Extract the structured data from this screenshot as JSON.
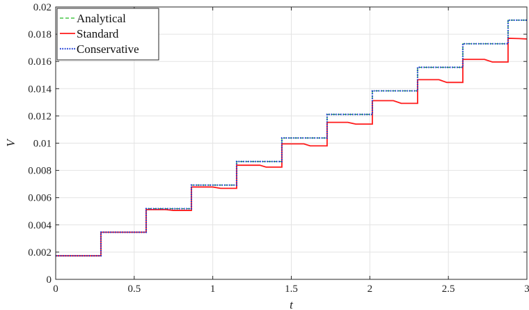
{
  "chart_data": {
    "type": "line",
    "title": "",
    "xlabel": "t",
    "ylabel": "V",
    "xlim": [
      0,
      3
    ],
    "ylim": [
      0,
      0.02
    ],
    "xticks": [
      0,
      0.5,
      1,
      1.5,
      2,
      2.5,
      3
    ],
    "xtick_labels": [
      "0",
      "0.5",
      "1",
      "1.5",
      "2",
      "2.5",
      "3"
    ],
    "yticks": [
      0,
      0.002,
      0.004,
      0.006,
      0.008,
      0.01,
      0.012,
      0.014,
      0.016,
      0.018,
      0.02
    ],
    "ytick_labels": [
      "0",
      "0.002",
      "0.004",
      "0.006",
      "0.008",
      "0.01",
      "0.012",
      "0.014",
      "0.016",
      "0.018",
      "0.02"
    ],
    "grid": true,
    "legend_position": "top-left",
    "series": [
      {
        "name": "Analytical",
        "color": "#22bb22",
        "style": "dashed",
        "x": [
          0,
          0.288,
          0.288,
          0.576,
          0.576,
          0.864,
          0.864,
          1.152,
          1.152,
          1.44,
          1.44,
          1.728,
          1.728,
          2.016,
          2.016,
          2.304,
          2.304,
          2.592,
          2.592,
          2.88,
          2.88,
          3.0
        ],
        "y": [
          0.00173,
          0.00173,
          0.00346,
          0.00346,
          0.00519,
          0.00519,
          0.00692,
          0.00692,
          0.00865,
          0.00865,
          0.01038,
          0.01038,
          0.01211,
          0.01211,
          0.01384,
          0.01384,
          0.01557,
          0.01557,
          0.0173,
          0.0173,
          0.01903,
          0.01903
        ]
      },
      {
        "name": "Standard",
        "color": "#ff1a1a",
        "style": "solid",
        "x": [
          0,
          0.288,
          0.288,
          0.576,
          0.576,
          0.7,
          0.75,
          0.864,
          0.864,
          1.0,
          1.05,
          1.152,
          1.152,
          1.3,
          1.34,
          1.44,
          1.44,
          1.58,
          1.62,
          1.728,
          1.728,
          1.86,
          1.91,
          2.016,
          2.016,
          2.15,
          2.2,
          2.304,
          2.304,
          2.44,
          2.49,
          2.592,
          2.592,
          2.73,
          2.78,
          2.88,
          2.88,
          2.95,
          3.0
        ],
        "y": [
          0.00173,
          0.00173,
          0.00346,
          0.00346,
          0.00512,
          0.00512,
          0.00506,
          0.00506,
          0.00678,
          0.00678,
          0.00668,
          0.00668,
          0.00838,
          0.00838,
          0.00824,
          0.00824,
          0.00995,
          0.00995,
          0.0098,
          0.0098,
          0.01153,
          0.01153,
          0.0114,
          0.0114,
          0.01312,
          0.01312,
          0.01292,
          0.01292,
          0.01466,
          0.01466,
          0.01446,
          0.01446,
          0.01615,
          0.01615,
          0.01596,
          0.01596,
          0.0177,
          0.01768,
          0.01765
        ]
      },
      {
        "name": "Conservative",
        "color": "#1a3ad6",
        "style": "dotted",
        "x": [
          0,
          0.288,
          0.288,
          0.576,
          0.576,
          0.864,
          0.864,
          1.152,
          1.152,
          1.44,
          1.44,
          1.728,
          1.728,
          2.016,
          2.016,
          2.304,
          2.304,
          2.592,
          2.592,
          2.88,
          2.88,
          3.0
        ],
        "y": [
          0.00173,
          0.00173,
          0.00346,
          0.00346,
          0.00519,
          0.00519,
          0.00692,
          0.00692,
          0.00865,
          0.00865,
          0.01038,
          0.01038,
          0.01211,
          0.01211,
          0.01384,
          0.01384,
          0.01557,
          0.01557,
          0.0173,
          0.0173,
          0.01903,
          0.01903
        ]
      }
    ]
  }
}
